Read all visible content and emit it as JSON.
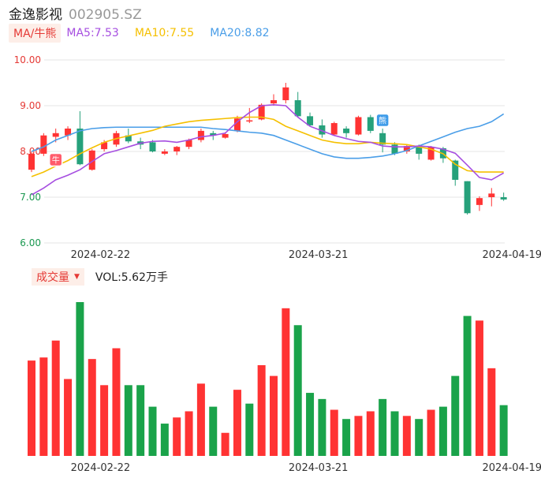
{
  "header": {
    "name": "金逸影视",
    "code": "002905.SZ"
  },
  "ma_bar": {
    "button": "MA/牛熊",
    "ma5": "MA5:7.53",
    "ma10": "MA10:7.55",
    "ma20": "MA20:8.82"
  },
  "volume_bar": {
    "button": "成交量",
    "arrow": "▼",
    "text": "VOL:5.62万手"
  },
  "colors": {
    "up": "#ff3333",
    "down": "#1aa34a",
    "down_candle": "#26a17b",
    "ma5": "#a64ee0",
    "ma10": "#f5c000",
    "ma20": "#4a9ee8",
    "grid": "#e6e6e6"
  },
  "icons": {
    "bull_marker": "牛",
    "bear_marker": "熊"
  },
  "chart_data": [
    {
      "type": "candlestick",
      "y_ticks": [
        "10.00",
        "9.00",
        "8.00",
        "7.00",
        "6.00"
      ],
      "ylim": [
        6.0,
        10.0
      ],
      "x_tick_labels": [
        "2024-02-22",
        "2024-03-21",
        "2024-04-19"
      ],
      "x_tick_index": [
        4,
        22,
        38
      ],
      "candles": [
        {
          "o": 7.6,
          "c": 7.95,
          "h": 8.0,
          "l": 7.55
        },
        {
          "o": 7.95,
          "c": 8.35,
          "h": 8.4,
          "l": 7.9
        },
        {
          "o": 8.32,
          "c": 8.4,
          "h": 8.5,
          "l": 8.2
        },
        {
          "o": 8.35,
          "c": 8.5,
          "h": 8.55,
          "l": 8.25
        },
        {
          "o": 8.5,
          "c": 7.72,
          "h": 8.88,
          "l": 7.7
        },
        {
          "o": 7.6,
          "c": 8.02,
          "h": 8.05,
          "l": 7.58
        },
        {
          "o": 8.05,
          "c": 8.2,
          "h": 8.25,
          "l": 8.0
        },
        {
          "o": 8.15,
          "c": 8.4,
          "h": 8.45,
          "l": 8.1
        },
        {
          "o": 8.35,
          "c": 8.22,
          "h": 8.5,
          "l": 8.18
        },
        {
          "o": 8.22,
          "c": 8.15,
          "h": 8.3,
          "l": 8.05
        },
        {
          "o": 8.2,
          "c": 8.0,
          "h": 8.25,
          "l": 7.98
        },
        {
          "o": 7.95,
          "c": 8.0,
          "h": 8.05,
          "l": 7.92
        },
        {
          "o": 8.0,
          "c": 8.1,
          "h": 8.12,
          "l": 7.92
        },
        {
          "o": 8.1,
          "c": 8.25,
          "h": 8.28,
          "l": 8.05
        },
        {
          "o": 8.25,
          "c": 8.45,
          "h": 8.5,
          "l": 8.2
        },
        {
          "o": 8.4,
          "c": 8.35,
          "h": 8.45,
          "l": 8.25
        },
        {
          "o": 8.3,
          "c": 8.38,
          "h": 8.42,
          "l": 8.28
        },
        {
          "o": 8.45,
          "c": 8.72,
          "h": 8.78,
          "l": 8.42
        },
        {
          "o": 8.68,
          "c": 8.68,
          "h": 8.95,
          "l": 8.62
        },
        {
          "o": 8.7,
          "c": 9.02,
          "h": 9.05,
          "l": 8.68
        },
        {
          "o": 9.05,
          "c": 9.12,
          "h": 9.25,
          "l": 9.0
        },
        {
          "o": 9.12,
          "c": 9.4,
          "h": 9.5,
          "l": 9.05
        },
        {
          "o": 9.12,
          "c": 8.77,
          "h": 9.3,
          "l": 8.75
        },
        {
          "o": 8.77,
          "c": 8.57,
          "h": 8.85,
          "l": 8.55
        },
        {
          "o": 8.57,
          "c": 8.37,
          "h": 8.7,
          "l": 8.3
        },
        {
          "o": 8.37,
          "c": 8.62,
          "h": 8.65,
          "l": 8.35
        },
        {
          "o": 8.5,
          "c": 8.4,
          "h": 8.55,
          "l": 8.3
        },
        {
          "o": 8.37,
          "c": 8.75,
          "h": 8.78,
          "l": 8.35
        },
        {
          "o": 8.75,
          "c": 8.45,
          "h": 8.8,
          "l": 8.4
        },
        {
          "o": 8.4,
          "c": 8.15,
          "h": 8.5,
          "l": 7.98
        },
        {
          "o": 8.15,
          "c": 7.95,
          "h": 8.2,
          "l": 7.92
        },
        {
          "o": 8.0,
          "c": 8.12,
          "h": 8.15,
          "l": 7.95
        },
        {
          "o": 8.1,
          "c": 7.95,
          "h": 8.15,
          "l": 7.82
        },
        {
          "o": 7.82,
          "c": 8.1,
          "h": 8.12,
          "l": 7.8
        },
        {
          "o": 8.07,
          "c": 7.85,
          "h": 8.1,
          "l": 7.75
        },
        {
          "o": 7.8,
          "c": 7.38,
          "h": 7.82,
          "l": 7.25
        },
        {
          "o": 7.35,
          "c": 6.65,
          "h": 7.35,
          "l": 6.62
        },
        {
          "o": 6.83,
          "c": 6.98,
          "h": 7.02,
          "l": 6.7
        },
        {
          "o": 7.0,
          "c": 7.08,
          "h": 7.2,
          "l": 6.8
        },
        {
          "o": 7.0,
          "c": 6.95,
          "h": 7.1,
          "l": 6.92
        }
      ],
      "ma5": [
        7.05,
        7.2,
        7.38,
        7.48,
        7.6,
        7.78,
        7.95,
        8.02,
        8.1,
        8.18,
        8.22,
        8.23,
        8.2,
        8.25,
        8.32,
        8.35,
        8.4,
        8.65,
        8.85,
        9.0,
        9.02,
        9.0,
        8.75,
        8.55,
        8.45,
        8.35,
        8.28,
        8.22,
        8.2,
        8.12,
        8.1,
        8.1,
        8.12,
        8.1,
        8.05,
        7.96,
        7.7,
        7.43,
        7.38,
        7.53
      ],
      "ma10": [
        7.45,
        7.55,
        7.68,
        7.8,
        7.95,
        8.08,
        8.2,
        8.28,
        8.34,
        8.4,
        8.46,
        8.55,
        8.6,
        8.65,
        8.68,
        8.7,
        8.72,
        8.74,
        8.75,
        8.75,
        8.7,
        8.55,
        8.45,
        8.35,
        8.25,
        8.2,
        8.17,
        8.17,
        8.2,
        8.18,
        8.17,
        8.15,
        8.1,
        8.05,
        7.95,
        7.72,
        7.58,
        7.55,
        7.55,
        7.55
      ],
      "ma20": [
        8.0,
        8.1,
        8.25,
        8.35,
        8.45,
        8.5,
        8.52,
        8.53,
        8.53,
        8.53,
        8.53,
        8.53,
        8.53,
        8.53,
        8.53,
        8.5,
        8.48,
        8.45,
        8.42,
        8.4,
        8.35,
        8.25,
        8.15,
        8.05,
        7.95,
        7.88,
        7.85,
        7.85,
        7.87,
        7.9,
        7.95,
        8.02,
        8.12,
        8.22,
        8.32,
        8.42,
        8.5,
        8.55,
        8.65,
        8.82
      ]
    },
    {
      "type": "bar",
      "title": "成交量",
      "x_tick_labels": [
        "2024-02-22",
        "2024-03-21",
        "2024-04-19"
      ],
      "x_tick_index": [
        4,
        22,
        38
      ],
      "values": [
        0.62,
        0.64,
        0.75,
        0.5,
        1.0,
        0.63,
        0.46,
        0.7,
        0.46,
        0.46,
        0.32,
        0.21,
        0.25,
        0.29,
        0.47,
        0.32,
        0.15,
        0.43,
        0.34,
        0.59,
        0.52,
        0.96,
        0.85,
        0.41,
        0.37,
        0.3,
        0.24,
        0.26,
        0.29,
        0.37,
        0.29,
        0.26,
        0.24,
        0.3,
        0.32,
        0.52,
        0.91,
        0.88,
        0.57,
        0.33
      ],
      "directions": [
        "up",
        "up",
        "up",
        "up",
        "down",
        "up",
        "up",
        "up",
        "down",
        "down",
        "down",
        "down",
        "up",
        "up",
        "up",
        "down",
        "up",
        "up",
        "down",
        "up",
        "up",
        "up",
        "down",
        "down",
        "down",
        "up",
        "down",
        "up",
        "up",
        "down",
        "down",
        "up",
        "down",
        "up",
        "down",
        "down",
        "down",
        "up",
        "up",
        "down"
      ]
    }
  ]
}
